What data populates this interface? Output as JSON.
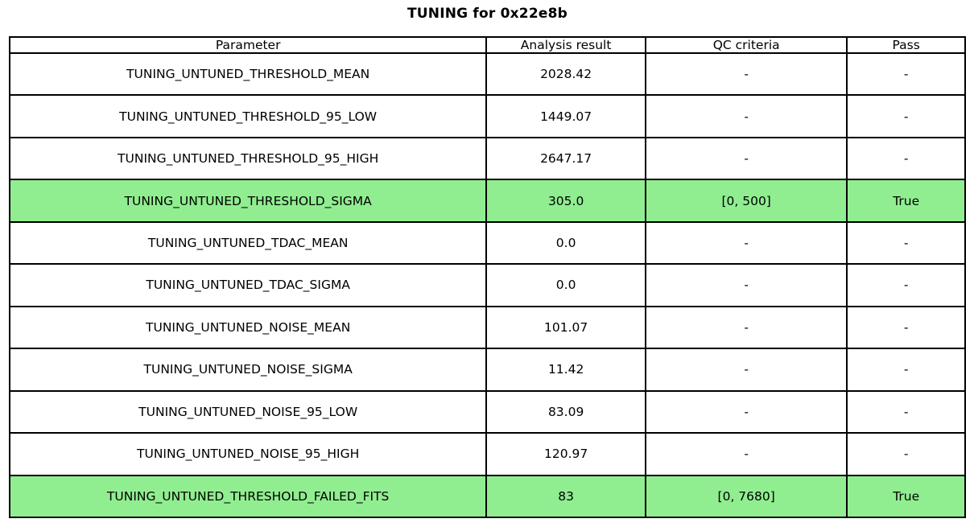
{
  "title": "TUNING for 0x22e8b",
  "colors": {
    "highlight_green": "#90ee90",
    "border": "#000000",
    "background": "#ffffff",
    "text": "#000000"
  },
  "chart_data": {
    "type": "table",
    "title": "TUNING for 0x22e8b",
    "columns": [
      "Parameter",
      "Analysis result",
      "QC criteria",
      "Pass"
    ],
    "rows": [
      [
        "TUNING_UNTUNED_THRESHOLD_MEAN",
        "2028.42",
        "-",
        "-"
      ],
      [
        "TUNING_UNTUNED_THRESHOLD_95_LOW",
        "1449.07",
        "-",
        "-"
      ],
      [
        "TUNING_UNTUNED_THRESHOLD_95_HIGH",
        "2647.17",
        "-",
        "-"
      ],
      [
        "TUNING_UNTUNED_THRESHOLD_SIGMA",
        "305.0",
        "[0, 500]",
        "True"
      ],
      [
        "TUNING_UNTUNED_TDAC_MEAN",
        "0.0",
        "-",
        "-"
      ],
      [
        "TUNING_UNTUNED_TDAC_SIGMA",
        "0.0",
        "-",
        "-"
      ],
      [
        "TUNING_UNTUNED_NOISE_MEAN",
        "101.07",
        "-",
        "-"
      ],
      [
        "TUNING_UNTUNED_NOISE_SIGMA",
        "11.42",
        "-",
        "-"
      ],
      [
        "TUNING_UNTUNED_NOISE_95_LOW",
        "83.09",
        "-",
        "-"
      ],
      [
        "TUNING_UNTUNED_NOISE_95_HIGH",
        "120.97",
        "-",
        "-"
      ],
      [
        "TUNING_UNTUNED_THRESHOLD_FAILED_FITS",
        "83",
        "[0, 7680]",
        "True"
      ]
    ],
    "highlighted_row_indices": [
      3,
      10
    ],
    "highlight_color": "#90ee90",
    "layout": "header row on top, all cells center-aligned, black grid lines"
  }
}
